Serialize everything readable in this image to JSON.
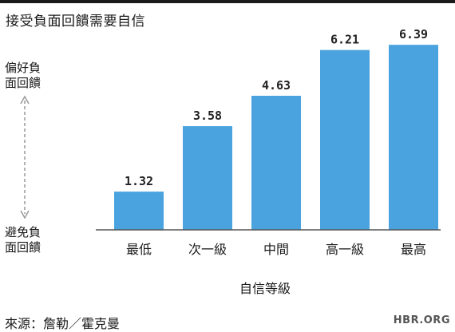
{
  "title": "接受負面回饋需要自信",
  "y_label_high": [
    "偏好負",
    "面回饋"
  ],
  "y_label_low": [
    "避免負",
    "面回饋"
  ],
  "source": "來源：詹勒／霍克曼",
  "brand": "HBR.ORG",
  "colors": {
    "bar": "#4aa3df",
    "axis": "#555555",
    "arrow": "#999999"
  },
  "chart_data": {
    "type": "bar",
    "title": "接受負面回饋需要自信",
    "xlabel": "自信等級",
    "ylabel": "",
    "categories": [
      "最低",
      "次一級",
      "中間",
      "高一級",
      "最高"
    ],
    "values": [
      1.32,
      3.58,
      4.63,
      6.21,
      6.39
    ],
    "value_labels": [
      "1.32",
      "3.58",
      "4.63",
      "6.21",
      "6.39"
    ],
    "ylim": [
      0,
      7
    ],
    "grid": false,
    "legend": "none"
  }
}
